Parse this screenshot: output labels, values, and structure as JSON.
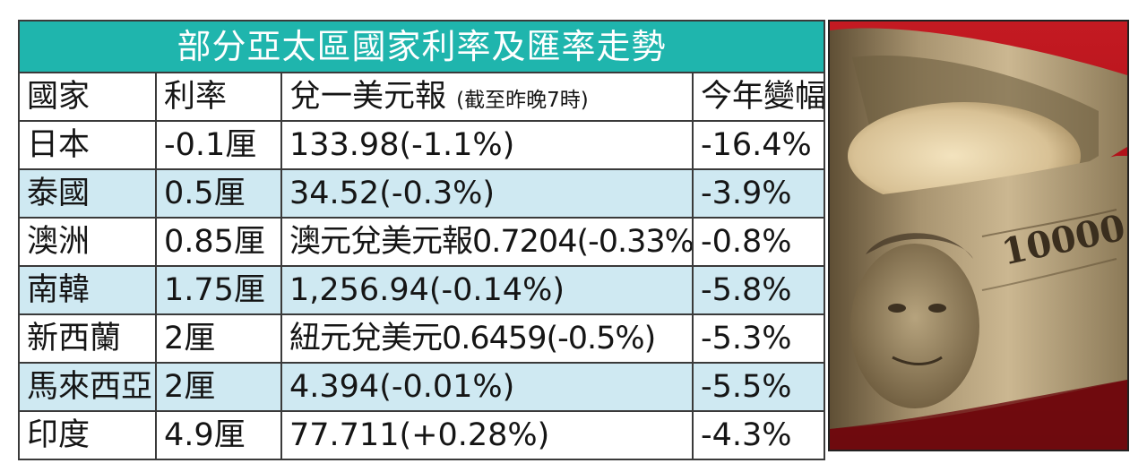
{
  "table": {
    "title": "部分亞太區國家利率及匯率走勢",
    "headers": {
      "country": "國家",
      "rate": "利率",
      "fx": "兌一美元報",
      "fx_note": "(截至昨晚7時)",
      "ytd": "今年變幅"
    },
    "rows": [
      {
        "country": "日本",
        "rate": "-0.1厘",
        "fx": "133.98(-1.1%)",
        "ytd": "-16.4%"
      },
      {
        "country": "泰國",
        "rate": "0.5厘",
        "fx": "34.52(-0.3%)",
        "ytd": "-3.9%"
      },
      {
        "country": "澳洲",
        "rate": "0.85厘",
        "fx": "澳元兌美元報0.7204(-0.33%)",
        "ytd": "-0.8%"
      },
      {
        "country": "南韓",
        "rate": "1.75厘",
        "fx": "1,256.94(-0.14%)",
        "ytd": "-5.8%"
      },
      {
        "country": "新西蘭",
        "rate": "2厘",
        "fx": "紐元兌美元0.6459(-0.5%)",
        "ytd": "-5.3%"
      },
      {
        "country": "馬來西亞",
        "rate": "2厘",
        "fx": "4.394(-0.01%)",
        "ytd": "-5.5%"
      },
      {
        "country": "印度",
        "rate": "4.9厘",
        "fx": "77.711(+0.28%)",
        "ytd": "-4.3%"
      }
    ]
  },
  "photo": {
    "banknote_number": "10000"
  },
  "colors": {
    "title_bg": "#1fb5ad",
    "stripe_bg": "#cfe9f2"
  }
}
